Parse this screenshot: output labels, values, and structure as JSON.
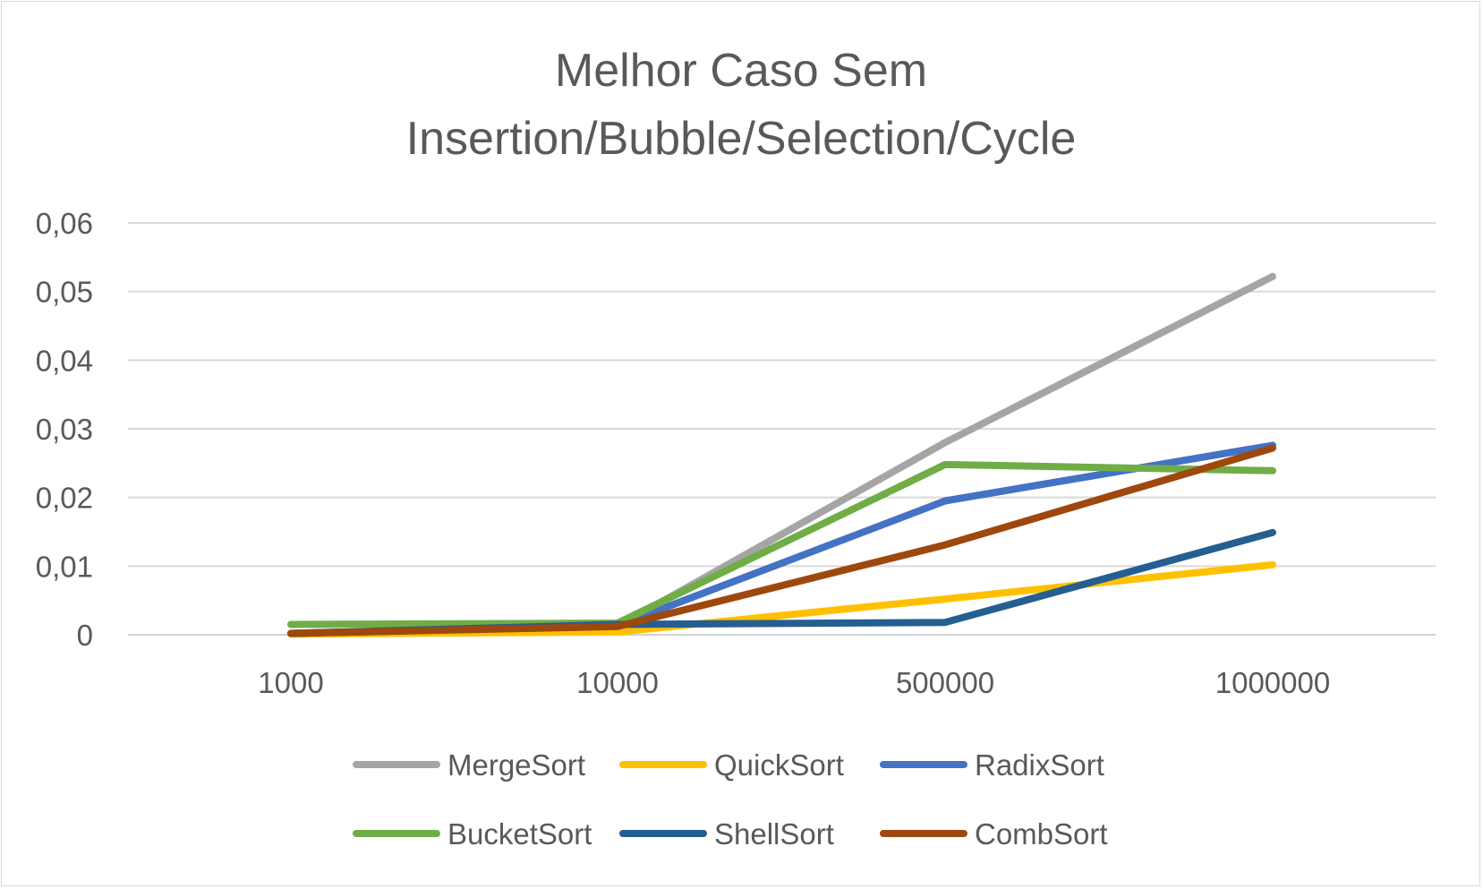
{
  "chart_data": {
    "type": "line",
    "title": "Melhor Caso Sem",
    "subtitle": "Insertion/Bubble/Selection/Cycle",
    "xlabel": "",
    "ylabel": "",
    "categories": [
      "1000",
      "10000",
      "500000",
      "1000000"
    ],
    "y_ticks": [
      "0",
      "0,01",
      "0,02",
      "0,03",
      "0,04",
      "0,05",
      "0,06"
    ],
    "ylim": [
      0,
      0.06
    ],
    "grid": true,
    "legend_position": "bottom",
    "series": [
      {
        "name": "MergeSort",
        "color": "#a5a5a5",
        "values": [
          0.0002,
          0.0012,
          0.028,
          0.0522
        ]
      },
      {
        "name": "QuickSort",
        "color": "#ffc000",
        "values": [
          0.0001,
          0.0004,
          0.0052,
          0.0102
        ]
      },
      {
        "name": "RadixSort",
        "color": "#4472c4",
        "values": [
          0.0002,
          0.0013,
          0.0195,
          0.0276
        ]
      },
      {
        "name": "BucketSort",
        "color": "#70ad47",
        "values": [
          0.0015,
          0.0017,
          0.0248,
          0.0239
        ]
      },
      {
        "name": "ShellSort",
        "color": "#255e91",
        "values": [
          0.0002,
          0.0015,
          0.0018,
          0.0149
        ]
      },
      {
        "name": "CombSort",
        "color": "#9e480e",
        "values": [
          0.0002,
          0.0012,
          0.0131,
          0.0272
        ]
      }
    ]
  }
}
